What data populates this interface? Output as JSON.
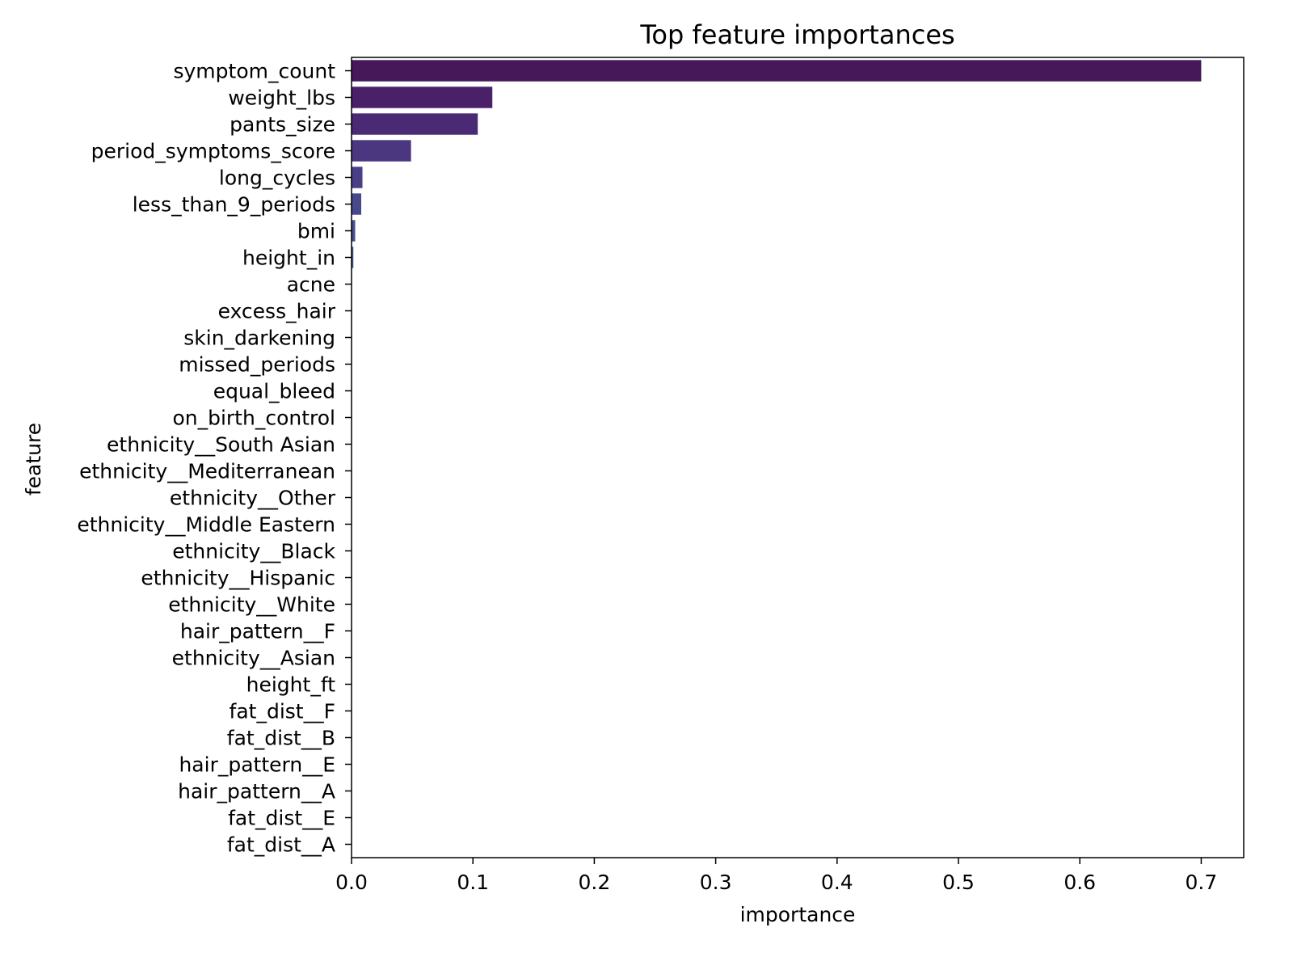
{
  "chart_data": {
    "type": "bar",
    "orientation": "horizontal",
    "title": "Top feature importances",
    "xlabel": "importance",
    "ylabel": "feature",
    "xlim": [
      0,
      0.735
    ],
    "xticks": [
      0.0,
      0.1,
      0.2,
      0.3,
      0.4,
      0.5,
      0.6,
      0.7
    ],
    "xtick_labels": [
      "0.0",
      "0.1",
      "0.2",
      "0.3",
      "0.4",
      "0.5",
      "0.6",
      "0.7"
    ],
    "grid": false,
    "categories": [
      "symptom_count",
      "weight_lbs",
      "pants_size",
      "period_symptoms_score",
      "long_cycles",
      "less_than_9_periods",
      "bmi",
      "height_in",
      "acne",
      "excess_hair",
      "skin_darkening",
      "missed_periods",
      "equal_bleed",
      "on_birth_control",
      "ethnicity__South Asian",
      "ethnicity__Mediterranean",
      "ethnicity__Other",
      "ethnicity__Middle Eastern",
      "ethnicity__Black",
      "ethnicity__Hispanic",
      "ethnicity__White",
      "hair_pattern__F",
      "ethnicity__Asian",
      "height_ft",
      "fat_dist__F",
      "fat_dist__B",
      "hair_pattern__E",
      "hair_pattern__A",
      "fat_dist__E",
      "fat_dist__A"
    ],
    "values": [
      0.7,
      0.116,
      0.104,
      0.049,
      0.009,
      0.008,
      0.003,
      0.0015,
      0,
      0,
      0,
      0,
      0,
      0,
      0,
      0,
      0,
      0,
      0,
      0,
      0,
      0,
      0,
      0,
      0,
      0,
      0,
      0,
      0,
      0
    ],
    "colors": [
      "#46185a",
      "#4a2068",
      "#4b2a75",
      "#4b3680",
      "#4a3f87",
      "#48488c",
      "#46518f",
      "#435a92",
      "#406194",
      "#3d6896",
      "#3a6f97",
      "#377698",
      "#347c99",
      "#31839a",
      "#2e899a",
      "#2b909b",
      "#28979b",
      "#269e9a",
      "#24a499",
      "#23ab97",
      "#25b293",
      "#2ab88f",
      "#33bf89",
      "#3ec582",
      "#4dcb7a",
      "#5ed16f",
      "#70d664",
      "#83db57",
      "#98e04a",
      "#ade43d"
    ]
  }
}
